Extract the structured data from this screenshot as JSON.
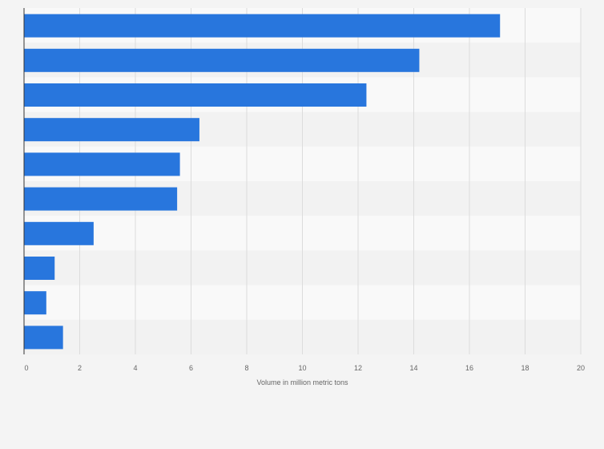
{
  "chart_data": {
    "type": "bar",
    "orientation": "horizontal",
    "categories": [
      "",
      "",
      "",
      "",
      "",
      "",
      "",
      "",
      "",
      ""
    ],
    "values": [
      17.1,
      14.2,
      12.3,
      6.3,
      5.6,
      5.5,
      2.5,
      1.1,
      0.8,
      1.4
    ],
    "title": "",
    "xlabel": "Volume in million metric tons",
    "ylabel": "",
    "xlim": [
      0,
      20
    ],
    "xticks": [
      0,
      2,
      4,
      6,
      8,
      10,
      12,
      14,
      16,
      18,
      20
    ],
    "xtick_labels": [
      "0",
      "2",
      "4",
      "6",
      "8",
      "10",
      "12",
      "14",
      "16",
      "18",
      "20"
    ],
    "grid": true,
    "legend": "none"
  },
  "colors": {
    "bar": "#2876dd",
    "row_band_light": "#f9f9f9",
    "row_band_dark": "#f2f2f2",
    "gridline": "#dcdcdc",
    "axis": "#333333",
    "text": "#666666",
    "background": "#f4f4f4"
  }
}
